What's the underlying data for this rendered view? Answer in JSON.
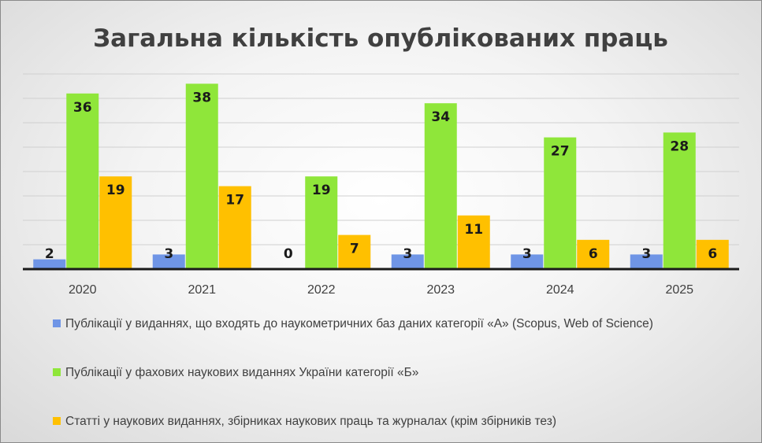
{
  "chart_data": {
    "type": "bar",
    "title": "Загальна кількість опублікованих праць",
    "categories": [
      "2020",
      "2021",
      "2022",
      "2023",
      "2024",
      "2025"
    ],
    "series": [
      {
        "name": "Публікації у виданнях, що входять до наукометричних баз даних категорії «А» (Scopus, Web of Science)",
        "values": [
          2,
          3,
          0,
          3,
          3,
          3
        ],
        "color": "#6f95e6"
      },
      {
        "name": "Публікації у фахових наукових виданнях України категорії «Б»",
        "values": [
          36,
          38,
          19,
          34,
          27,
          28
        ],
        "color": "#8fe63a"
      },
      {
        "name": "Статті у наукових виданнях, збірниках наукових праць та журналах (крім збірників тез)",
        "values": [
          19,
          17,
          7,
          11,
          6,
          6
        ],
        "color": "#ffc000"
      }
    ],
    "ylim": [
      0,
      40
    ],
    "grid": true,
    "legend_position": "bottom"
  }
}
